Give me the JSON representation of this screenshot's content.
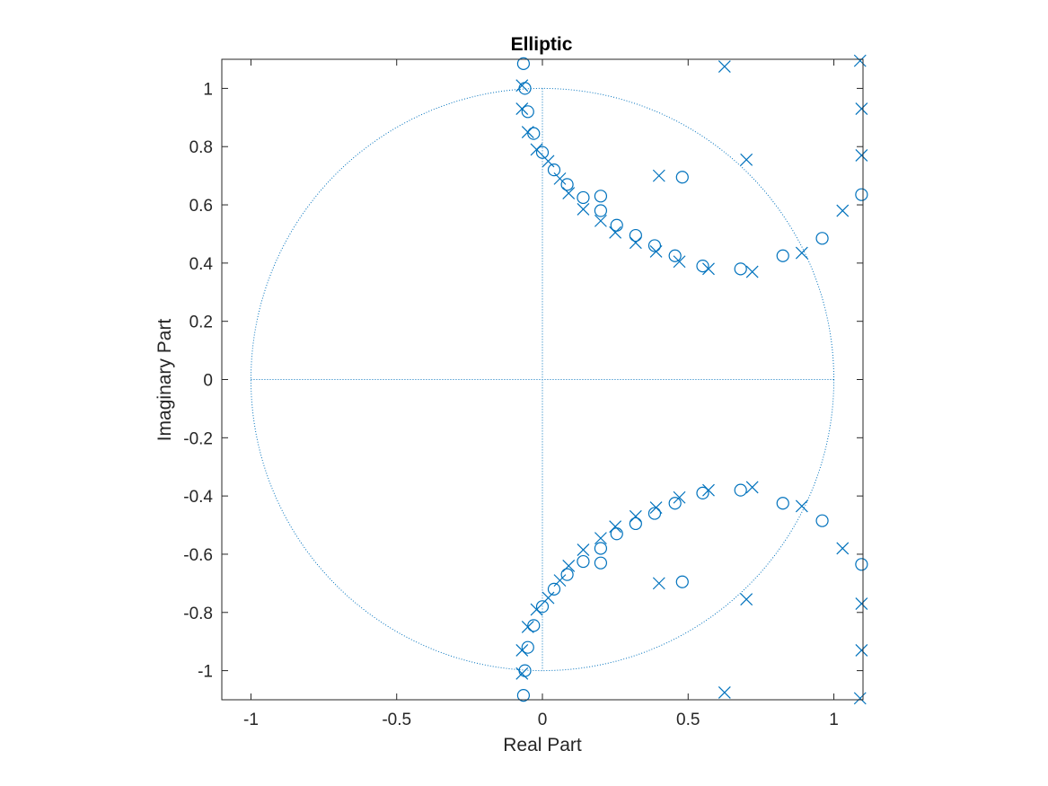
{
  "chart_data": {
    "type": "scatter",
    "title": "Elliptic",
    "xlabel": "Real Part",
    "ylabel": "Imaginary Part",
    "xlim": [
      -1.1,
      1.1
    ],
    "ylim": [
      -1.1,
      1.1
    ],
    "grid": false,
    "unit_circle": true,
    "color": "#0072BD",
    "axis_color": "#262626",
    "xticks": [
      -1,
      -0.5,
      0,
      0.5,
      1
    ],
    "xtick_labels": [
      "-1",
      "-0.5",
      "0",
      "0.5",
      "1"
    ],
    "yticks": [
      1,
      0.8,
      0.6,
      0.4,
      0.2,
      0,
      -0.2,
      -0.4,
      -0.6,
      -0.8,
      -1
    ],
    "ytick_labels": [
      "1",
      "0.8",
      "0.6",
      "0.4",
      "0.2",
      "0",
      "-0.2",
      "-0.4",
      "-0.6",
      "-0.8",
      "-1"
    ],
    "zeros": [
      [
        -0.065,
        1.085
      ],
      [
        -0.06,
        1.0
      ],
      [
        -0.05,
        0.92
      ],
      [
        -0.03,
        0.845
      ],
      [
        0.0,
        0.78
      ],
      [
        0.04,
        0.72
      ],
      [
        0.085,
        0.67
      ],
      [
        0.14,
        0.625
      ],
      [
        0.2,
        0.63
      ],
      [
        0.2,
        0.58
      ],
      [
        0.255,
        0.53
      ],
      [
        0.32,
        0.495
      ],
      [
        0.385,
        0.46
      ],
      [
        0.455,
        0.425
      ],
      [
        0.55,
        0.39
      ],
      [
        0.68,
        0.38
      ],
      [
        0.48,
        0.695
      ],
      [
        0.825,
        0.425
      ],
      [
        0.96,
        0.485
      ],
      [
        1.095,
        0.635
      ],
      [
        -0.065,
        -1.085
      ],
      [
        -0.06,
        -1.0
      ],
      [
        -0.05,
        -0.92
      ],
      [
        -0.03,
        -0.845
      ],
      [
        0.0,
        -0.78
      ],
      [
        0.04,
        -0.72
      ],
      [
        0.085,
        -0.67
      ],
      [
        0.14,
        -0.625
      ],
      [
        0.2,
        -0.63
      ],
      [
        0.2,
        -0.58
      ],
      [
        0.255,
        -0.53
      ],
      [
        0.32,
        -0.495
      ],
      [
        0.385,
        -0.46
      ],
      [
        0.455,
        -0.425
      ],
      [
        0.55,
        -0.39
      ],
      [
        0.68,
        -0.38
      ],
      [
        0.48,
        -0.695
      ],
      [
        0.825,
        -0.425
      ],
      [
        0.96,
        -0.485
      ],
      [
        1.095,
        -0.635
      ]
    ],
    "poles": [
      [
        -0.07,
        1.01
      ],
      [
        -0.07,
        0.93
      ],
      [
        -0.05,
        0.85
      ],
      [
        -0.02,
        0.79
      ],
      [
        0.02,
        0.75
      ],
      [
        0.06,
        0.69
      ],
      [
        0.09,
        0.64
      ],
      [
        0.14,
        0.585
      ],
      [
        0.2,
        0.545
      ],
      [
        0.25,
        0.505
      ],
      [
        0.32,
        0.47
      ],
      [
        0.39,
        0.44
      ],
      [
        0.47,
        0.405
      ],
      [
        0.57,
        0.38
      ],
      [
        0.72,
        0.37
      ],
      [
        0.4,
        0.7
      ],
      [
        0.7,
        0.755
      ],
      [
        0.625,
        1.075
      ],
      [
        0.89,
        0.435
      ],
      [
        1.03,
        0.58
      ],
      [
        1.095,
        0.77
      ],
      [
        1.095,
        0.93
      ],
      [
        1.09,
        1.095
      ],
      [
        -0.07,
        -1.01
      ],
      [
        -0.07,
        -0.93
      ],
      [
        -0.05,
        -0.85
      ],
      [
        -0.02,
        -0.79
      ],
      [
        0.02,
        -0.75
      ],
      [
        0.06,
        -0.69
      ],
      [
        0.09,
        -0.64
      ],
      [
        0.14,
        -0.585
      ],
      [
        0.2,
        -0.545
      ],
      [
        0.25,
        -0.505
      ],
      [
        0.32,
        -0.47
      ],
      [
        0.39,
        -0.44
      ],
      [
        0.47,
        -0.405
      ],
      [
        0.57,
        -0.38
      ],
      [
        0.72,
        -0.37
      ],
      [
        0.4,
        -0.7
      ],
      [
        0.7,
        -0.755
      ],
      [
        0.625,
        -1.075
      ],
      [
        0.89,
        -0.435
      ],
      [
        1.03,
        -0.58
      ],
      [
        1.095,
        -0.77
      ],
      [
        1.095,
        -0.93
      ],
      [
        1.09,
        -1.095
      ]
    ]
  }
}
